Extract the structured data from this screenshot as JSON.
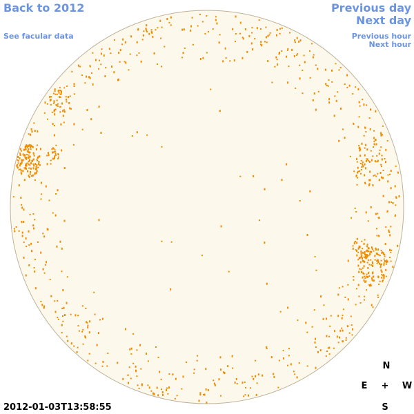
{
  "header": {
    "back_link": "Back to 2012",
    "facular_link": "See facular data"
  },
  "navigation": {
    "previous_day": "Previous day",
    "next_day": "Next day",
    "previous_hour": "Previous hour",
    "next_hour": "Next hour"
  },
  "timestamp": "2012-01-03T13:58:55",
  "compass": {
    "north": "N",
    "east": "E",
    "center": "+",
    "west": "W",
    "south": "S"
  }
}
